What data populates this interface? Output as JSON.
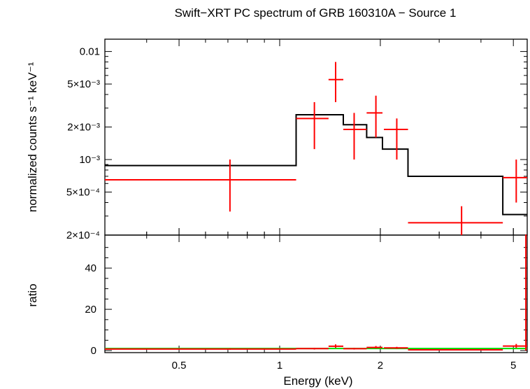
{
  "chart_data": [
    {
      "type": "scatter",
      "title": "Swift−XRT PC spectrum of GRB 160310A − Source 1",
      "xlabel": "Energy (keV)",
      "ylabel": "normalized counts s⁻¹ keV⁻¹",
      "xscale": "log",
      "yscale": "log",
      "xlim": [
        0.3,
        5.5
      ],
      "ylim": [
        0.0002,
        0.013
      ],
      "x_ticklabels": [
        "0.5",
        "1",
        "2",
        "5"
      ],
      "x_tickvalues": [
        0.5,
        1,
        2,
        5
      ],
      "y_ticks": [
        {
          "value": 0.01,
          "label": "0.01"
        },
        {
          "value": 0.005,
          "label": "5×10⁻³"
        },
        {
          "value": 0.002,
          "label": "2×10⁻³"
        },
        {
          "value": 0.001,
          "label": "10⁻³"
        },
        {
          "value": 0.0005,
          "label": "5×10⁻⁴"
        },
        {
          "value": 0.0002,
          "label": "2×10⁻⁴"
        }
      ],
      "series": [
        {
          "kind": "data",
          "color": "#ff0000",
          "points": [
            {
              "x": 0.71,
              "xlo": 0.3,
              "xhi": 1.12,
              "y": 0.00065,
              "ylo": 0.00033,
              "yhi": 0.001
            },
            {
              "x": 1.27,
              "xlo": 1.12,
              "xhi": 1.4,
              "y": 0.0024,
              "ylo": 0.00125,
              "yhi": 0.0034
            },
            {
              "x": 1.47,
              "xlo": 1.4,
              "xhi": 1.55,
              "y": 0.0055,
              "ylo": 0.0034,
              "yhi": 0.008
            },
            {
              "x": 1.67,
              "xlo": 1.55,
              "xhi": 1.82,
              "y": 0.0019,
              "ylo": 0.001,
              "yhi": 0.0027
            },
            {
              "x": 1.94,
              "xlo": 1.82,
              "xhi": 2.03,
              "y": 0.0027,
              "ylo": 0.0016,
              "yhi": 0.0039
            },
            {
              "x": 2.24,
              "xlo": 2.05,
              "xhi": 2.42,
              "y": 0.0019,
              "ylo": 0.001,
              "yhi": 0.0024
            },
            {
              "x": 3.5,
              "xlo": 2.42,
              "xhi": 4.65,
              "y": 0.00026,
              "ylo": 0.0002,
              "yhi": 0.00037
            },
            {
              "x": 5.1,
              "xlo": 4.65,
              "xhi": 5.5,
              "y": 0.00068,
              "ylo": 0.0004,
              "yhi": 0.001
            }
          ]
        },
        {
          "kind": "model",
          "color": "#000000",
          "steps": [
            {
              "x0": 0.3,
              "x1": 1.12,
              "y": 0.00088
            },
            {
              "x0": 1.12,
              "x1": 1.55,
              "y": 0.0026
            },
            {
              "x0": 1.55,
              "x1": 1.82,
              "y": 0.0021
            },
            {
              "x0": 1.82,
              "x1": 2.03,
              "y": 0.0016
            },
            {
              "x0": 2.03,
              "x1": 2.42,
              "y": 0.00125
            },
            {
              "x0": 2.42,
              "x1": 4.65,
              "y": 0.0007
            },
            {
              "x0": 4.65,
              "x1": 5.5,
              "y": 0.00031
            }
          ]
        }
      ]
    },
    {
      "type": "scatter",
      "xlabel": "Energy (keV)",
      "ylabel": "ratio",
      "xscale": "log",
      "xlim": [
        0.3,
        5.5
      ],
      "ylim": [
        -1,
        56
      ],
      "x_ticklabels": [
        "0.5",
        "1",
        "2",
        "5"
      ],
      "x_tickvalues": [
        0.5,
        1,
        2,
        5
      ],
      "y_ticklabels": [
        "0",
        "20",
        "40"
      ],
      "y_tickvalues": [
        0,
        20,
        40
      ],
      "reference_line": {
        "y": 1,
        "color": "#00dd00"
      },
      "series": [
        {
          "kind": "ratio",
          "color": "#ff0000",
          "points": [
            {
              "x": 0.71,
              "xlo": 0.3,
              "xhi": 1.12,
              "y": 0.74,
              "ylo": 0.4,
              "yhi": 1.1
            },
            {
              "x": 1.27,
              "xlo": 1.12,
              "xhi": 1.4,
              "y": 0.93,
              "ylo": 0.5,
              "yhi": 1.3
            },
            {
              "x": 1.47,
              "xlo": 1.4,
              "xhi": 1.55,
              "y": 2.1,
              "ylo": 1.3,
              "yhi": 3.0
            },
            {
              "x": 1.67,
              "xlo": 1.55,
              "xhi": 1.82,
              "y": 0.9,
              "ylo": 0.5,
              "yhi": 1.3
            },
            {
              "x": 1.94,
              "xlo": 1.82,
              "xhi": 2.03,
              "y": 1.5,
              "ylo": 1.0,
              "yhi": 2.2
            },
            {
              "x": 2.24,
              "xlo": 2.05,
              "xhi": 2.42,
              "y": 1.3,
              "ylo": 0.8,
              "yhi": 1.8
            },
            {
              "x": 3.5,
              "xlo": 2.42,
              "xhi": 4.65,
              "y": 0.37,
              "ylo": 0.2,
              "yhi": 0.5
            },
            {
              "x": 5.1,
              "xlo": 4.65,
              "xhi": 5.5,
              "y": 2.2,
              "ylo": 1.3,
              "yhi": 3.2
            },
            {
              "x": 5.45,
              "xlo": 5.43,
              "xhi": 5.47,
              "y": 56,
              "ylo": 0,
              "yhi": 56
            }
          ]
        }
      ]
    }
  ]
}
